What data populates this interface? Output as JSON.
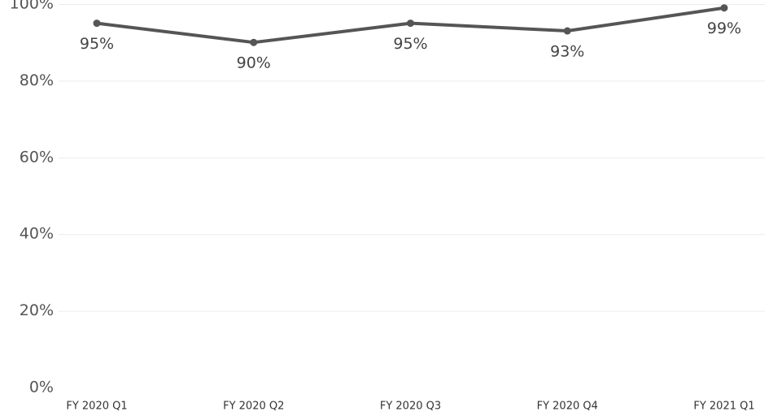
{
  "chart_data": {
    "type": "line",
    "categories": [
      "FY 2020 Q1",
      "FY 2020 Q2",
      "FY 2020 Q3",
      "FY 2020 Q4",
      "FY 2021 Q1"
    ],
    "values": [
      95,
      90,
      95,
      93,
      99
    ],
    "data_labels": [
      "95%",
      "90%",
      "95%",
      "93%",
      "99%"
    ],
    "y_ticks": [
      0,
      20,
      40,
      60,
      80,
      100
    ],
    "y_tick_labels": [
      "0%",
      "20%",
      "40%",
      "60%",
      "80%",
      "100%"
    ],
    "ylim": [
      0,
      100
    ],
    "grid": true,
    "title": "",
    "xlabel": "",
    "ylabel": "",
    "line_color": "#555555",
    "grid_color": "#ececec"
  }
}
